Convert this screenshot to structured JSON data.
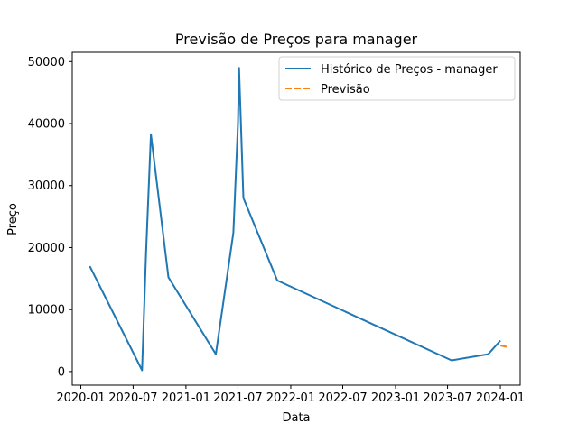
{
  "chart_data": {
    "type": "line",
    "title": "Previsão de Preços para manager",
    "xlabel": "Data",
    "ylabel": "Preço",
    "grid": false,
    "legend_position": "upper-right",
    "x_range": [
      "2019-12-02",
      "2024-03-10"
    ],
    "ylim": [
      -2200,
      51500
    ],
    "x_ticks": [
      "2020-01",
      "2020-07",
      "2021-01",
      "2021-07",
      "2022-01",
      "2022-07",
      "2023-01",
      "2023-07",
      "2024-01"
    ],
    "y_ticks": [
      0,
      10000,
      20000,
      30000,
      40000,
      50000
    ],
    "series": [
      {
        "name": "Histórico de Preços - manager",
        "style": "solid",
        "color": "#1f77b4",
        "points": [
          {
            "x": "2020-02-01",
            "y": 17000
          },
          {
            "x": "2020-08-01",
            "y": 200
          },
          {
            "x": "2020-08-15",
            "y": 19000
          },
          {
            "x": "2020-09-01",
            "y": 38300
          },
          {
            "x": "2020-11-01",
            "y": 15200
          },
          {
            "x": "2021-04-15",
            "y": 2800
          },
          {
            "x": "2021-06-15",
            "y": 22400
          },
          {
            "x": "2021-07-01",
            "y": 40000
          },
          {
            "x": "2021-07-05",
            "y": 49000
          },
          {
            "x": "2021-07-20",
            "y": 28000
          },
          {
            "x": "2021-11-15",
            "y": 14700
          },
          {
            "x": "2023-07-15",
            "y": 1800
          },
          {
            "x": "2023-11-20",
            "y": 2800
          },
          {
            "x": "2024-01-01",
            "y": 5000
          }
        ]
      },
      {
        "name": "Previsão",
        "style": "dashed",
        "color": "#ff7f0e",
        "points": [
          {
            "x": "2024-01-01",
            "y": 4200
          },
          {
            "x": "2024-02-01",
            "y": 3900
          }
        ]
      }
    ]
  }
}
